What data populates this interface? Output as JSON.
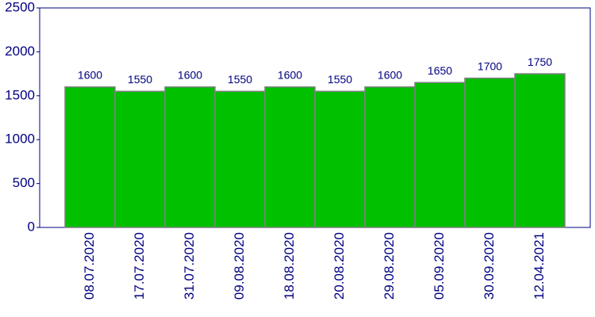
{
  "chart_data": {
    "type": "bar",
    "categories": [
      "08.07.2020",
      "17.07.2020",
      "31.07.2020",
      "09.08.2020",
      "18.08.2020",
      "20.08.2020",
      "29.08.2020",
      "05.09.2020",
      "30.09.2020",
      "12.04.2021"
    ],
    "values": [
      1600,
      1550,
      1600,
      1550,
      1600,
      1550,
      1600,
      1650,
      1700,
      1750
    ],
    "color": "#00c000",
    "ylim": [
      0,
      2500
    ],
    "yticks": [
      0,
      500,
      1000,
      1500,
      2000,
      2500
    ],
    "grid": false
  }
}
